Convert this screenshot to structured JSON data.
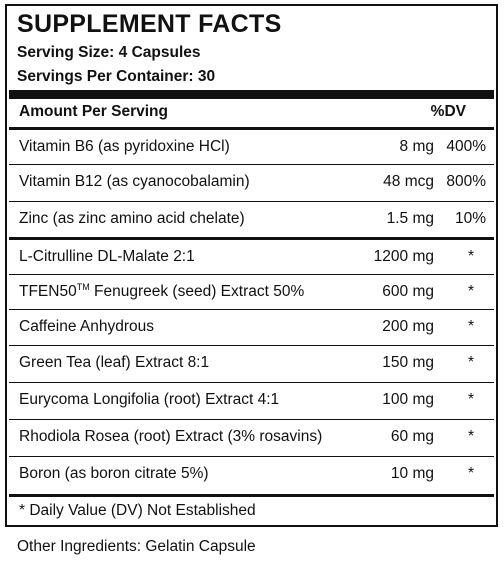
{
  "title": "SUPPLEMENT FACTS",
  "serving_size": "Serving Size: 4 Capsules",
  "servings_per_container": "Servings Per Container: 30",
  "header": {
    "amount": "Amount Per Serving",
    "dv": "%DV"
  },
  "vitamins": [
    {
      "name": "Vitamin B6 (as pyridoxine HCl)",
      "amount": "8 mg",
      "dv": "400%"
    },
    {
      "name": "Vitamin B12 (as cyanocobalamin)",
      "amount": "48 mcg",
      "dv": "800%"
    },
    {
      "name": "Zinc (as zinc amino acid chelate)",
      "amount": "1.5 mg",
      "dv": "10%"
    }
  ],
  "blend": [
    {
      "name": "L-Citrulline DL-Malate 2:1",
      "amount": "1200 mg",
      "dv": "*"
    },
    {
      "name_pre": "TFEN50",
      "name_sup": "TM",
      "name_post": " Fenugreek (seed) Extract 50%",
      "amount": "600 mg",
      "dv": "*"
    },
    {
      "name": "Caffeine Anhydrous",
      "amount": "200 mg",
      "dv": "*"
    },
    {
      "name": "Green Tea (leaf) Extract 8:1",
      "amount": "150 mg",
      "dv": "*"
    },
    {
      "name": "Eurycoma Longifolia (root) Extract 4:1",
      "amount": "100 mg",
      "dv": "*"
    },
    {
      "name": "Rhodiola Rosea (root) Extract (3% rosavins)",
      "amount": "60 mg",
      "dv": "*"
    },
    {
      "name": "Boron (as boron citrate 5%)",
      "amount": "10 mg",
      "dv": "*"
    }
  ],
  "footnote": "* Daily Value (DV) Not Established",
  "other_ingredients": "Other Ingredients: Gelatin Capsule"
}
